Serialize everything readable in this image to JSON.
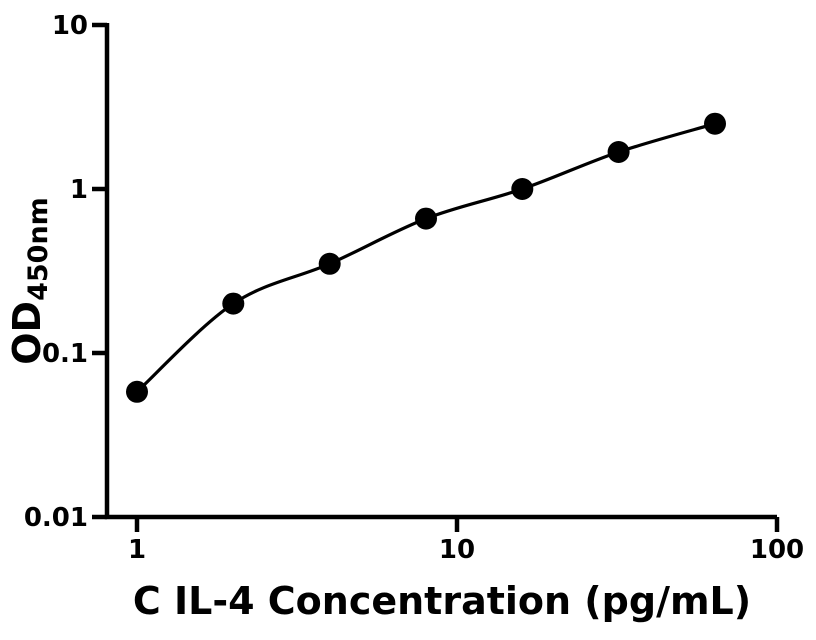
{
  "chart_data": {
    "type": "scatter",
    "title": "",
    "xlabel": "C IL-4 Concentration (pg/mL)",
    "ylabel_main": "OD",
    "ylabel_sub": "450nm",
    "x_scale": "log",
    "y_scale": "log",
    "xlim": [
      1,
      100
    ],
    "ylim": [
      0.01,
      10
    ],
    "x": [
      1,
      2,
      4,
      8,
      16,
      32,
      64
    ],
    "y": [
      0.058,
      0.2,
      0.35,
      0.66,
      1.0,
      1.68,
      2.5
    ],
    "x_ticks": [
      {
        "value": 1,
        "label": "1"
      },
      {
        "value": 10,
        "label": "10"
      },
      {
        "value": 100,
        "label": "100"
      }
    ],
    "y_ticks": [
      {
        "value": 0.01,
        "label": "0.01"
      },
      {
        "value": 0.1,
        "label": "0.1"
      },
      {
        "value": 1,
        "label": "1"
      },
      {
        "value": 10,
        "label": "10"
      }
    ],
    "grid": false,
    "legend": false,
    "marker": "filled-circle",
    "curve_style": "smooth-fit-line",
    "marker_color": "#000000",
    "line_color": "#000000",
    "axis_color": "#000000",
    "background_color": "#ffffff"
  }
}
